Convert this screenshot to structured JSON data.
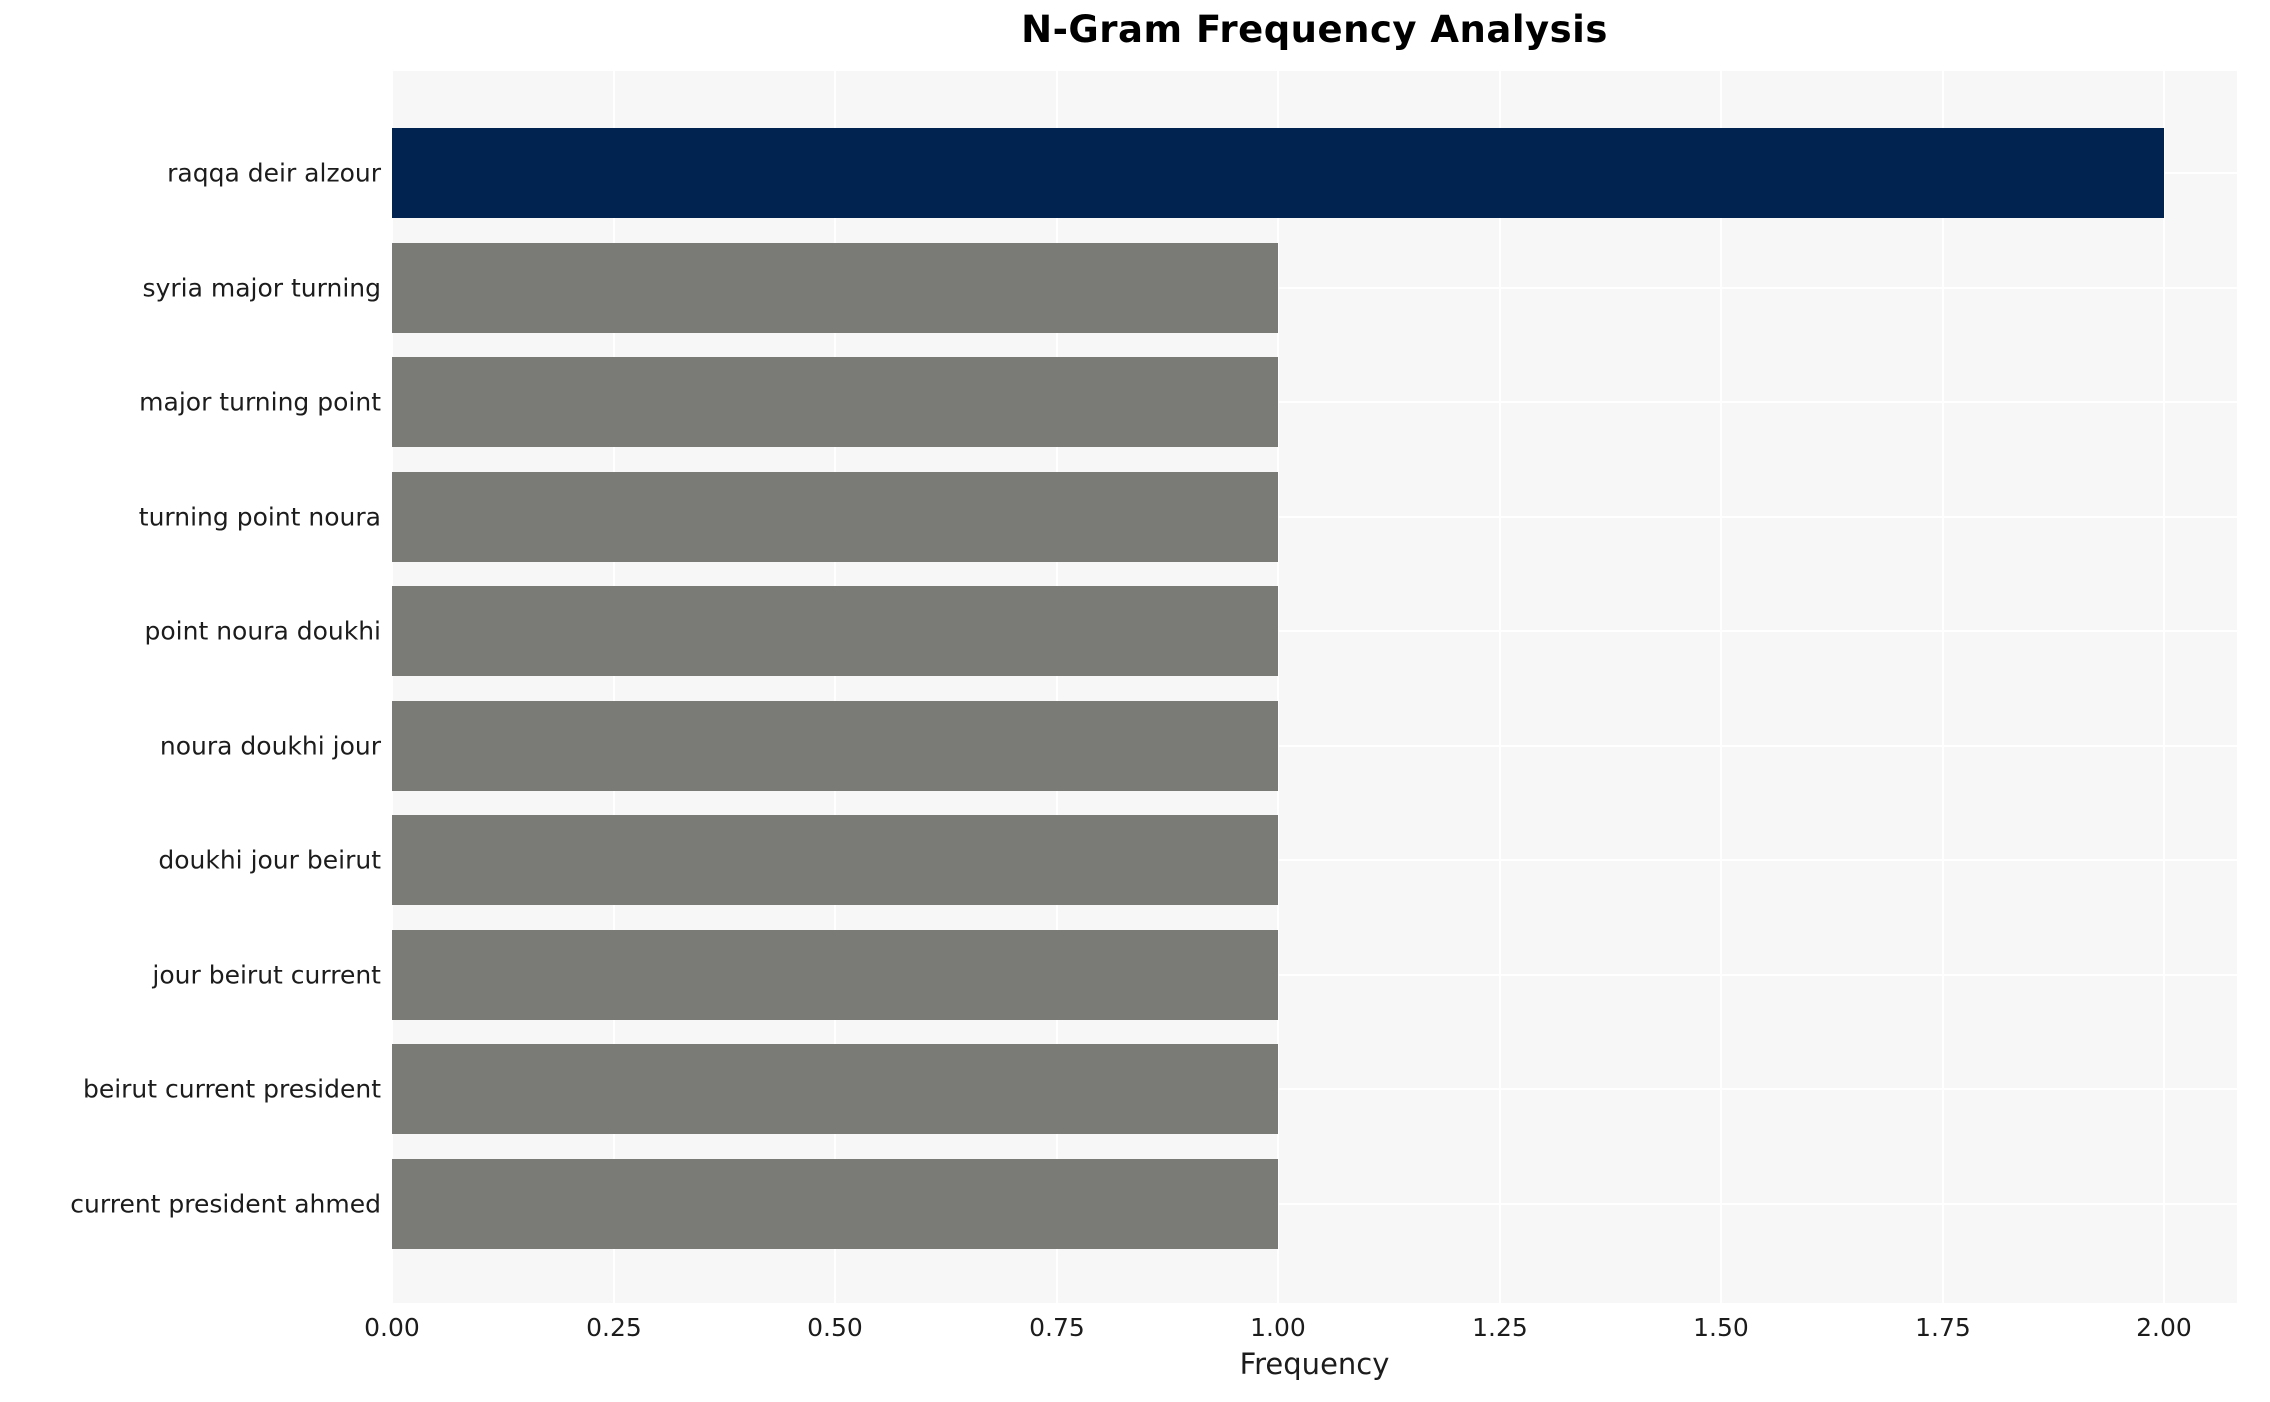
{
  "chart_data": {
    "type": "bar",
    "orientation": "horizontal",
    "title": "N-Gram Frequency Analysis",
    "xlabel": "Frequency",
    "ylabel": "",
    "categories": [
      "raqqa deir alzour",
      "syria major turning",
      "major turning point",
      "turning point noura",
      "point noura doukhi",
      "noura doukhi jour",
      "doukhi jour beirut",
      "jour beirut current",
      "beirut current president",
      "current president ahmed"
    ],
    "values": [
      2.0,
      1.0,
      1.0,
      1.0,
      1.0,
      1.0,
      1.0,
      1.0,
      1.0,
      1.0
    ],
    "bar_colors": [
      "#00234F",
      "#7A7A77",
      "#7A7A77",
      "#7A7A77",
      "#7A7A77",
      "#7A7A77",
      "#7A7A77",
      "#7A7A77",
      "#7A7A77",
      "#7A7A77"
    ],
    "highlight_color": "#00234F",
    "default_bar_color": "#7A7A77",
    "xlim": [
      0,
      2.08
    ],
    "xticks": {
      "values": [
        0,
        0.25,
        0.5,
        0.75,
        1.0,
        1.25,
        1.5,
        1.75,
        2.0
      ],
      "labels": [
        "0.00",
        "0.25",
        "0.50",
        "0.75",
        "1.00",
        "1.25",
        "1.50",
        "1.75",
        "2.00"
      ]
    },
    "grid": {
      "show": true,
      "color": "#FFFFFF",
      "vertical_at_ticks": true,
      "horizontal_at_categories": true
    },
    "plot_background": "#F7F7F7",
    "figure_background": "#FFFFFF",
    "legend": null
  }
}
